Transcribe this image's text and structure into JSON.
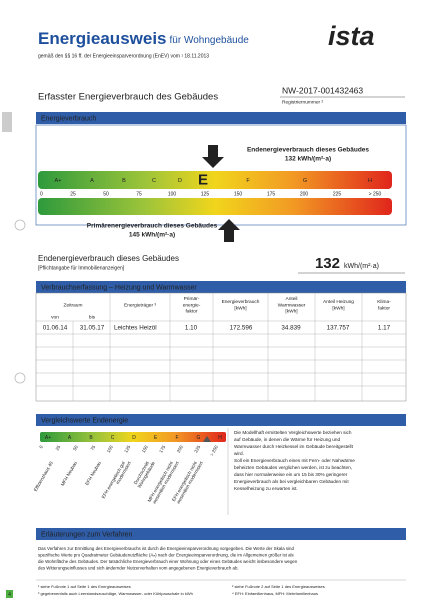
{
  "header": {
    "title": "Energieausweis",
    "title_suffix": "für Wohngebäude",
    "subtitle": "gemäß den §§ 16 ff. der Energieeinsparverordnung (EnEV) vom ¹ 18.11.2013",
    "logo": "ista"
  },
  "building": {
    "heading": "Erfasster Energieverbrauch des Gebäudes",
    "registration_number": "NW-2017-001432463",
    "registration_label": "Registriernummer ²"
  },
  "energy_scale": {
    "section_title": "Energieverbrauch",
    "final_energy_label": "Endenergieverbrauch dieses Gebäudes",
    "final_energy_value": "132 kWh/(m²·a)",
    "primary_energy_label": "Primärenergieverbrauch dieses Gebäudes",
    "primary_energy_value": "145 kWh/(m²·a)",
    "classes": [
      "A+",
      "A",
      "B",
      "C",
      "D",
      "E",
      "F",
      "G",
      "H"
    ],
    "ticks": [
      "0",
      "25",
      "50",
      "75",
      "100",
      "125",
      "150",
      "175",
      "200",
      "225",
      "> 250"
    ]
  },
  "final_energy": {
    "label": "Endenergieverbrauch dieses Gebäudes",
    "note": "[Pflichtangabe für Immobilienanzeigen]",
    "value": "132",
    "unit": "kWh/(m²·a)"
  },
  "consumption_table": {
    "title": "Verbrauchserfassung – Heizung und Warmwasser",
    "headers": [
      [
        "Zeitraum"
      ],
      [
        "Energieträger ³"
      ],
      [
        "Primär-",
        "energie-",
        "faktor"
      ],
      [
        "Energieverbrauch",
        "[kWh]"
      ],
      [
        "Anteil",
        "Warmwasser",
        "[kWh]"
      ],
      [
        "Anteil Heizung",
        "[kWh]"
      ],
      [
        "Klima-",
        "faktor"
      ]
    ],
    "sub_headers": [
      "von",
      "bis"
    ],
    "rows": [
      [
        "01.06.14",
        "31.05.17",
        "Leichtes Heizöl",
        "1.10",
        "172.596",
        "34.839",
        "137.757",
        "1.17"
      ]
    ]
  },
  "comparison": {
    "title": "Vergleichswerte Endenergie",
    "classes": [
      "A+",
      "A",
      "B",
      "C",
      "D",
      "E",
      "F",
      "G",
      "H"
    ],
    "ticks": [
      "0",
      "25",
      "50",
      "75",
      "100",
      "125",
      "150",
      "175",
      "200",
      "225",
      "> 250"
    ],
    "references": [
      [
        "Effizienzhaus 40"
      ],
      [
        "MFH Neubau"
      ],
      [
        "EFH Neubau"
      ],
      [
        "EFH energetisch gut",
        "modernisiert"
      ],
      [
        "Durchschnitt",
        "Wohngebäude"
      ],
      [
        "MFH energetisch nicht",
        "wesentlich modernisiert"
      ],
      [
        "EFH energetisch nicht",
        "wesentlich modernisiert"
      ]
    ],
    "text": [
      "Die Modellhaft ermittelten Vergleichswerte beziehen sich",
      "auf Gebäude, in denen die Wärme für Heizung und",
      "Warmwasser durch Heizkessel im Gebäude bereitgestellt",
      "wird.",
      "Soll ein Energieverbrauch eines mit Fern- oder Nahwärme",
      "beheizten Gebäudes verglichen werden, ist zu beachten,",
      "dass hier normalerweise ein um 15 bis 30% geringerer",
      "Energieverbrauch als bei vergleichbaren Gebäuden mit",
      "Kesselheizung zu erwarten ist."
    ]
  },
  "explanation": {
    "title": "Erläuterungen zum Verfahren",
    "text": [
      "Das Verfahren zur Ermittlung des Energieverbrauchs ist durch die Energieeinsparverordnung vorgegeben. Die Werte der Skala sind",
      "spezifische Werte pro Quadratmeter Gebäudenutzfläche (Aₙ) nach der Energieeinsparverordnung, die im Allgemeinen größer ist als",
      "die Wohnfläche des Gebäudes. Der tatsächliche Energieverbrauch einer Wohnung oder eines Gebäudes weicht insbesondere wegen",
      "des Witterungseinflusses und sich ändernder Nutzerverhalten vom angegebenen Energieverbrauch ab."
    ]
  },
  "footnotes": [
    "¹ siehe Fußnote 1 auf Seite 1 des Energieausweises",
    "³ gegebenenfalls auch Leerstandszuschläge, Warmwasser- oder Kühlpauschale in kWh",
    "² siehe Fußnote 2 auf Seite 1 des Energieausweises",
    "⁴ EFH: Einfamilienhaus, MFH: Mehrfamilienhaus"
  ],
  "page_number": "4"
}
